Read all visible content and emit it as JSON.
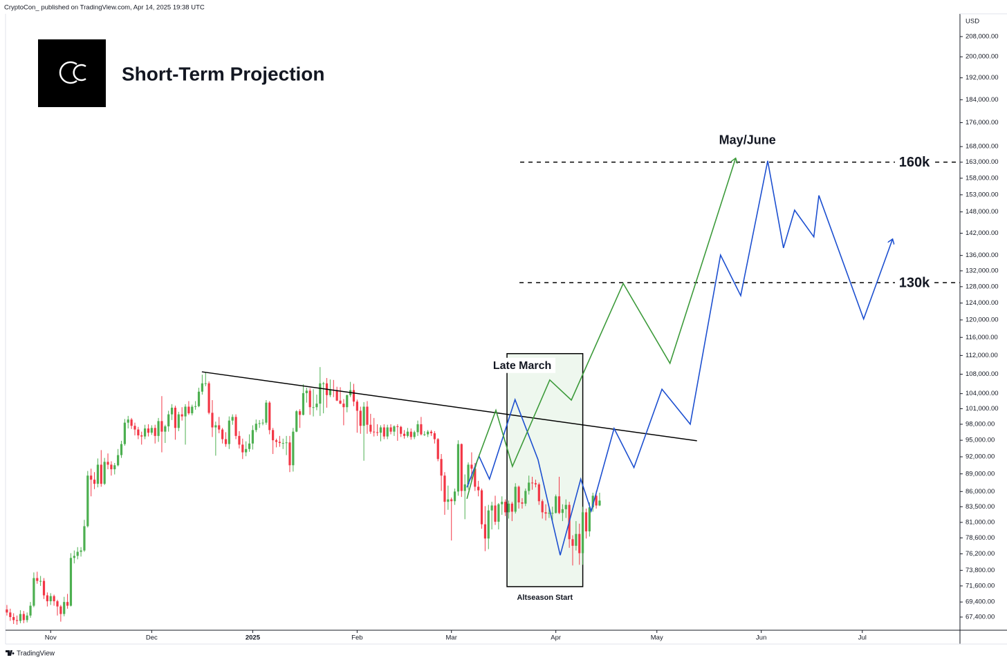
{
  "attribution": "CryptoCon_ published on TradingView.com, Apr 14, 2025 19:38 UTC",
  "brand": "TradingView",
  "chart_data": {
    "type": "candlestick",
    "title": "Short-Term Projection",
    "y_label": "USD",
    "log_scale": true,
    "grid": false,
    "up_color": "#4caf50",
    "down_color": "#f23645",
    "xlim": [
      -0.4,
      283
    ],
    "ylim": [
      65700,
      217400
    ],
    "xticks": [
      {
        "value": 13,
        "label": "Nov"
      },
      {
        "value": 43,
        "label": "Dec"
      },
      {
        "value": 73,
        "label": "2025"
      },
      {
        "value": 104,
        "label": "Feb"
      },
      {
        "value": 132,
        "label": "Mar"
      },
      {
        "value": 163,
        "label": "Apr"
      },
      {
        "value": 193,
        "label": "May"
      },
      {
        "value": 224,
        "label": "Jun"
      },
      {
        "value": 254,
        "label": "Jul"
      }
    ],
    "yticks": [
      {
        "value": 208000,
        "label": "208,000.00"
      },
      {
        "value": 200000,
        "label": "200,000.00"
      },
      {
        "value": 192000,
        "label": "192,000.00"
      },
      {
        "value": 184000,
        "label": "184,000.00"
      },
      {
        "value": 176000,
        "label": "176,000.00"
      },
      {
        "value": 168000,
        "label": "168,000.00"
      },
      {
        "value": 163000,
        "label": "163,000.00"
      },
      {
        "value": 158000,
        "label": "158,000.00"
      },
      {
        "value": 153000,
        "label": "153,000.00"
      },
      {
        "value": 148000,
        "label": "148,000.00"
      },
      {
        "value": 142000,
        "label": "142,000.00"
      },
      {
        "value": 136000,
        "label": "136,000.00"
      },
      {
        "value": 132000,
        "label": "132,000.00"
      },
      {
        "value": 128000,
        "label": "128,000.00"
      },
      {
        "value": 124000,
        "label": "124,000.00"
      },
      {
        "value": 120000,
        "label": "120,000.00"
      },
      {
        "value": 116000,
        "label": "116,000.00"
      },
      {
        "value": 112000,
        "label": "112,000.00"
      },
      {
        "value": 108000,
        "label": "108,000.00"
      },
      {
        "value": 104000,
        "label": "104,000.00"
      },
      {
        "value": 101000,
        "label": "101,000.00"
      },
      {
        "value": 98000,
        "label": "98,000.00"
      },
      {
        "value": 95000,
        "label": "95,000.00"
      },
      {
        "value": 92000,
        "label": "92,000.00"
      },
      {
        "value": 89000,
        "label": "89,000.00"
      },
      {
        "value": 86000,
        "label": "86,000.00"
      },
      {
        "value": 83500,
        "label": "83,500.00"
      },
      {
        "value": 81000,
        "label": "81,000.00"
      },
      {
        "value": 78600,
        "label": "78,600.00"
      },
      {
        "value": 76200,
        "label": "76,200.00"
      },
      {
        "value": 73800,
        "label": "73,800.00"
      },
      {
        "value": 71600,
        "label": "71,600.00"
      },
      {
        "value": 69400,
        "label": "69,400.00"
      },
      {
        "value": 67400,
        "label": "67,400.00"
      }
    ],
    "candles": [
      [
        68400,
        69000,
        67600,
        68000
      ],
      [
        68000,
        68500,
        66900,
        67400
      ],
      [
        67400,
        67900,
        66500,
        67000
      ],
      [
        67000,
        67600,
        66400,
        66900
      ],
      [
        66900,
        68300,
        66600,
        67800
      ],
      [
        67800,
        68200,
        66600,
        67000
      ],
      [
        67000,
        68000,
        66700,
        67600
      ],
      [
        67600,
        69400,
        67300,
        68900
      ],
      [
        68900,
        73500,
        68700,
        72700
      ],
      [
        72700,
        73600,
        71900,
        72300
      ],
      [
        72300,
        73000,
        71600,
        72300
      ],
      [
        72300,
        72700,
        69800,
        70300
      ],
      [
        70300,
        70700,
        68800,
        69500
      ],
      [
        69500,
        70600,
        69000,
        70200
      ],
      [
        70200,
        70400,
        68900,
        69500
      ],
      [
        69500,
        69700,
        67600,
        68800
      ],
      [
        68800,
        69000,
        66800,
        67800
      ],
      [
        67800,
        70100,
        67500,
        69400
      ],
      [
        69400,
        70500,
        68500,
        68900
      ],
      [
        68900,
        76300,
        68800,
        75600
      ],
      [
        75600,
        76700,
        74800,
        75900
      ],
      [
        75900,
        77200,
        75400,
        76500
      ],
      [
        76500,
        77200,
        75800,
        76700
      ],
      [
        76700,
        81400,
        76500,
        80400
      ],
      [
        80400,
        89500,
        80200,
        88700
      ],
      [
        88700,
        89900,
        85200,
        88000
      ],
      [
        88000,
        89300,
        86400,
        87300
      ],
      [
        87300,
        91700,
        86700,
        90600
      ],
      [
        90600,
        93200,
        86800,
        87300
      ],
      [
        87300,
        91800,
        87100,
        91100
      ],
      [
        91100,
        92600,
        89800,
        90600
      ],
      [
        90600,
        91200,
        88700,
        89800
      ],
      [
        89800,
        90900,
        88900,
        90500
      ],
      [
        90500,
        93400,
        90300,
        92300
      ],
      [
        92300,
        94900,
        91800,
        94300
      ],
      [
        94300,
        99000,
        94000,
        98300
      ],
      [
        98300,
        99600,
        97200,
        98900
      ],
      [
        98900,
        99200,
        97100,
        97700
      ],
      [
        97700,
        98300,
        95900,
        97000
      ],
      [
        97000,
        97500,
        95200,
        95900
      ],
      [
        95900,
        96600,
        94200,
        95700
      ],
      [
        95700,
        97900,
        95200,
        97200
      ],
      [
        97200,
        98000,
        95700,
        96400
      ],
      [
        96400,
        97800,
        96000,
        97300
      ],
      [
        97300,
        97900,
        94400,
        95800
      ],
      [
        95800,
        99200,
        94700,
        98600
      ],
      [
        98600,
        103500,
        92800,
        96600
      ],
      [
        96600,
        97900,
        94500,
        97600
      ],
      [
        97600,
        100600,
        96600,
        99900
      ],
      [
        99900,
        101900,
        98800,
        101200
      ],
      [
        101200,
        101600,
        95100,
        97300
      ],
      [
        97300,
        100400,
        96700,
        99900
      ],
      [
        99900,
        101300,
        98700,
        99500
      ],
      [
        99500,
        101900,
        94200,
        101400
      ],
      [
        101400,
        102500,
        99800,
        100100
      ],
      [
        100100,
        101800,
        99700,
        101400
      ],
      [
        101400,
        102500,
        100800,
        101500
      ],
      [
        101500,
        105200,
        101300,
        104400
      ],
      [
        104400,
        107900,
        103800,
        106100
      ],
      [
        106100,
        108300,
        105500,
        106100
      ],
      [
        106100,
        106500,
        99900,
        100200
      ],
      [
        100200,
        102700,
        95600,
        97400
      ],
      [
        97400,
        98500,
        92200,
        97800
      ],
      [
        97800,
        99400,
        96300,
        97000
      ],
      [
        97000,
        97300,
        94400,
        95200
      ],
      [
        95200,
        96500,
        93800,
        94300
      ],
      [
        94300,
        99500,
        93400,
        98700
      ],
      [
        98700,
        99900,
        97900,
        99400
      ],
      [
        99400,
        99900,
        95200,
        95800
      ],
      [
        95800,
        96700,
        93500,
        94200
      ],
      [
        94200,
        95300,
        91600,
        92800
      ],
      [
        92800,
        94800,
        92100,
        93400
      ],
      [
        93400,
        96100,
        92900,
        94400
      ],
      [
        94400,
        97800,
        93300,
        96900
      ],
      [
        96900,
        98900,
        96500,
        98100
      ],
      [
        98100,
        98800,
        97300,
        98200
      ],
      [
        98200,
        99000,
        97800,
        98300
      ],
      [
        98300,
        102700,
        97900,
        102200
      ],
      [
        102200,
        102500,
        96100,
        96900
      ],
      [
        96900,
        97300,
        92500,
        95000
      ],
      [
        95000,
        95300,
        93700,
        94700
      ],
      [
        94700,
        95800,
        93800,
        94500
      ],
      [
        94500,
        95300,
        93400,
        94500
      ],
      [
        94500,
        95800,
        92300,
        94600
      ],
      [
        94600,
        95800,
        89300,
        90500
      ],
      [
        90500,
        97300,
        89400,
        96600
      ],
      [
        96600,
        100700,
        96500,
        100500
      ],
      [
        100500,
        100900,
        97300,
        99800
      ],
      [
        99800,
        105900,
        99700,
        104100
      ],
      [
        104100,
        105200,
        102200,
        104600
      ],
      [
        104600,
        105100,
        99800,
        101300
      ],
      [
        101300,
        104900,
        99500,
        101300
      ],
      [
        101300,
        103800,
        100700,
        102000
      ],
      [
        102000,
        109500,
        99600,
        106100
      ],
      [
        106100,
        106400,
        100100,
        106100
      ],
      [
        106100,
        107200,
        101200,
        103700
      ],
      [
        103700,
        106900,
        103300,
        104800
      ],
      [
        104800,
        106800,
        103300,
        104700
      ],
      [
        104700,
        105400,
        102500,
        102600
      ],
      [
        102600,
        105300,
        101900,
        102000
      ],
      [
        102000,
        102900,
        97800,
        101300
      ],
      [
        101300,
        103800,
        100300,
        103700
      ],
      [
        103700,
        106400,
        103300,
        104700
      ],
      [
        104700,
        106000,
        101500,
        102400
      ],
      [
        102400,
        102800,
        96400,
        100600
      ],
      [
        100600,
        101400,
        96200,
        97700
      ],
      [
        97700,
        102300,
        91300,
        101400
      ],
      [
        101400,
        102500,
        96200,
        97900
      ],
      [
        97900,
        100000,
        96200,
        96600
      ],
      [
        96600,
        99200,
        95700,
        96500
      ],
      [
        96500,
        98000,
        95800,
        96400
      ],
      [
        96400,
        97800,
        94800,
        97400
      ],
      [
        97400,
        98000,
        95200,
        95700
      ],
      [
        95700,
        97900,
        95200,
        97400
      ],
      [
        97400,
        98000,
        96100,
        96600
      ],
      [
        96600,
        97800,
        95800,
        97600
      ],
      [
        97600,
        98000,
        94900,
        97500
      ],
      [
        97500,
        97700,
        95600,
        96200
      ],
      [
        96200,
        96900,
        95300,
        95800
      ],
      [
        95800,
        97300,
        95500,
        96600
      ],
      [
        96600,
        97200,
        95100,
        95600
      ],
      [
        95600,
        96800,
        95200,
        96500
      ],
      [
        96500,
        98700,
        95800,
        98000
      ],
      [
        98000,
        99400,
        95900,
        96100
      ],
      [
        96100,
        96700,
        95800,
        96100
      ],
      [
        96100,
        96900,
        95600,
        96600
      ],
      [
        96600,
        96900,
        95800,
        96300
      ],
      [
        96300,
        96700,
        94400,
        95200
      ],
      [
        95200,
        95400,
        91200,
        91600
      ],
      [
        91600,
        92500,
        86100,
        88700
      ],
      [
        88700,
        89300,
        82200,
        84300
      ],
      [
        84300,
        87000,
        83000,
        84700
      ],
      [
        84700,
        85000,
        78200,
        84400
      ],
      [
        84400,
        86500,
        83800,
        86000
      ],
      [
        86000,
        95000,
        85300,
        94300
      ],
      [
        94300,
        94400,
        85100,
        86100
      ],
      [
        86100,
        88900,
        81500,
        87200
      ],
      [
        87200,
        91000,
        86300,
        90600
      ],
      [
        90600,
        92800,
        87900,
        89900
      ],
      [
        89900,
        90900,
        86100,
        86800
      ],
      [
        86800,
        87800,
        85200,
        86200
      ],
      [
        86200,
        86500,
        80000,
        80700
      ],
      [
        80700,
        83600,
        76600,
        78500
      ],
      [
        78500,
        83800,
        76900,
        82900
      ],
      [
        82900,
        84300,
        79900,
        83700
      ],
      [
        83700,
        85300,
        80600,
        81100
      ],
      [
        81100,
        84100,
        79900,
        83900
      ],
      [
        83900,
        85200,
        82200,
        84300
      ],
      [
        84300,
        84700,
        82000,
        82600
      ],
      [
        82600,
        84500,
        81600,
        84000
      ],
      [
        84000,
        84300,
        81200,
        82700
      ],
      [
        82700,
        87400,
        82400,
        86800
      ],
      [
        86800,
        87000,
        83200,
        84200
      ],
      [
        84200,
        84900,
        83200,
        84000
      ],
      [
        84000,
        86500,
        83600,
        86100
      ],
      [
        86100,
        88700,
        85500,
        87500
      ],
      [
        87500,
        88500,
        86300,
        87400
      ],
      [
        87400,
        88000,
        86700,
        87200
      ],
      [
        87200,
        87500,
        83800,
        84400
      ],
      [
        84400,
        84700,
        81600,
        82600
      ],
      [
        82600,
        83900,
        81300,
        82400
      ],
      [
        82400,
        83300,
        81700,
        82500
      ],
      [
        82500,
        83500,
        81300,
        82500
      ],
      [
        82500,
        85500,
        82400,
        85200
      ],
      [
        85200,
        88500,
        82300,
        82500
      ],
      [
        82500,
        83900,
        81200,
        83100
      ],
      [
        83100,
        84700,
        81700,
        83800
      ],
      [
        83800,
        84300,
        77100,
        78400
      ],
      [
        78400,
        79000,
        74500,
        77400
      ],
      [
        77400,
        81200,
        76700,
        79200
      ],
      [
        79200,
        80800,
        74600,
        76300
      ],
      [
        76300,
        83500,
        74600,
        82600
      ],
      [
        82600,
        83200,
        78500,
        79600
      ],
      [
        79600,
        84200,
        78800,
        83400
      ],
      [
        83400,
        85800,
        82700,
        85300
      ],
      [
        85300,
        86100,
        83200,
        83700
      ],
      [
        83700,
        85800,
        83600,
        84500
      ]
    ],
    "series": [
      {
        "color": "#1c4fd0",
        "x": [
          136.6,
          140.2,
          143.3,
          150.9,
          157.7,
          164.3,
          170.4,
          173.5,
          180.3,
          186.2,
          194.5,
          202.9,
          211.9,
          217.9,
          225.9,
          230.6,
          233.9,
          239.6,
          241.1,
          254.4,
          263.0
        ],
        "values": [
          86700,
          92100,
          88100,
          102800,
          91500,
          76000,
          88100,
          82800,
          97200,
          90100,
          104900,
          98000,
          136100,
          125800,
          163400,
          138000,
          148500,
          141000,
          152800,
          120200,
          140400
        ]
      },
      {
        "color": "#3c9a3a",
        "x": [
          136.6,
          139.6,
          145.2,
          150.1,
          161.2,
          167.6,
          183.0,
          196.9,
          216.4
        ],
        "values": [
          84800,
          91200,
          100700,
          90300,
          106800,
          102700,
          128800,
          110300,
          164300
        ]
      }
    ],
    "trendline": {
      "color": "#000000",
      "x": [
        57.9,
        204.9
      ],
      "values": [
        108500,
        94900
      ]
    },
    "levels": [
      {
        "label": "160k",
        "value": 163000,
        "x_start": 152.4
      },
      {
        "label": "130k",
        "value": 129000,
        "x_start": 152.2
      }
    ],
    "box": {
      "label": "Late March",
      "caption": "Altseason Start",
      "caption_color": "#3c9a3a",
      "fill": "#eef7ee",
      "x": [
        148.5,
        171
      ],
      "values": [
        112400,
        71500
      ]
    },
    "annotation": "May/June"
  }
}
